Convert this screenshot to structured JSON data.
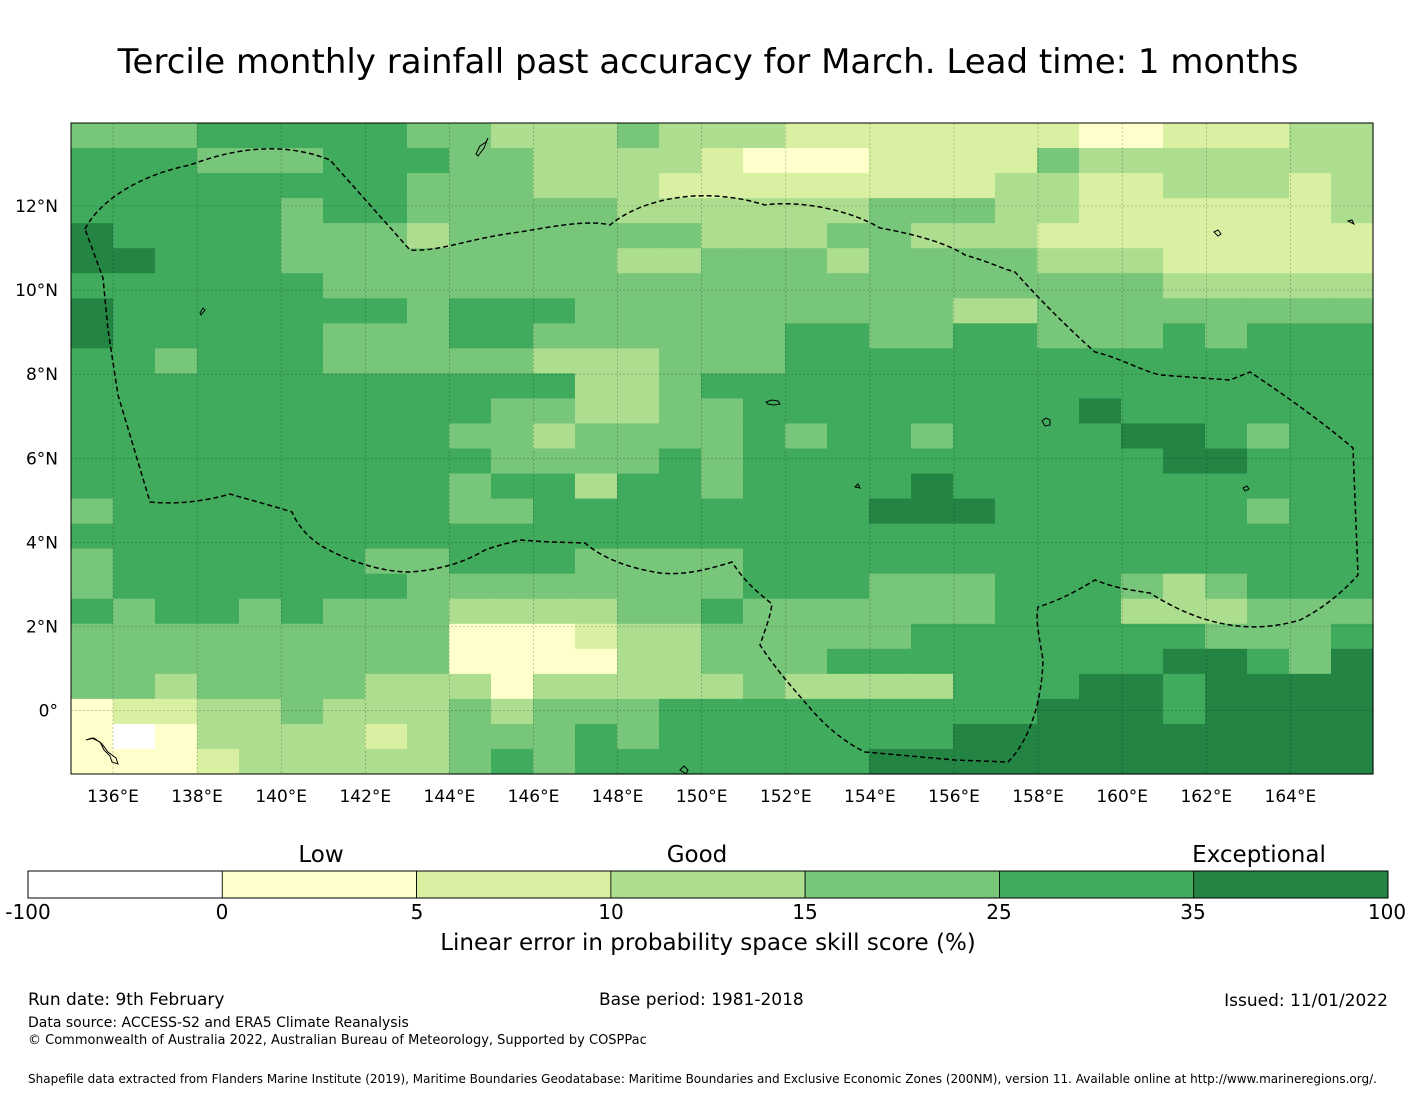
{
  "title": "Tercile monthly rainfall past accuracy for March. Lead time: 1 months",
  "map": {
    "lon_labels": [
      "136°E",
      "138°E",
      "140°E",
      "142°E",
      "144°E",
      "146°E",
      "148°E",
      "150°E",
      "152°E",
      "154°E",
      "156°E",
      "158°E",
      "160°E",
      "162°E",
      "164°E"
    ],
    "lat_labels": [
      "12°N",
      "10°N",
      "8°N",
      "6°N",
      "4°N",
      "2°N",
      "0°"
    ],
    "grid_rows": [
      "4445555544333433322222221122233",
      "5554445554433332111222243333333",
      "5555555544433322222222332233323",
      "5555545544444333333444332222223",
      "6555544434444443334433322222222",
      "6655544444444334443444433322222",
      "5555554444444444444444444433333",
      "6555555545554444444443344444444",
      "6555554445544444455445544454555",
      "5545554444433344455555555555555",
      "5555555555553345555555555555555",
      "5555555555443344555555556555555",
      "5555555554434444545545555665455",
      "5555555555444454555555555566555",
      "5555555554553554555565555555555",
      "4555555554455555555666555555455",
      "5555555555555555555555555555555",
      "4555555445554444555555555555555",
      "4555555544444444555444555434555",
      "5455454443333445444444555333444",
      "4444444441112334444455555554445",
      "4444444441111334445555555566546",
      "4434444333133333433335556656666",
      "1223343334344455555555566656666",
      "1013333234445455555556666666666",
      "1112333334545555555666666666666"
    ],
    "eez_region": "Federated States of Micronesia EEZ",
    "border_style": "dashed"
  },
  "legend": {
    "labels": [
      "Low",
      "Good",
      "Exceptional"
    ],
    "bins": [
      {
        "from": "-100",
        "to": "0",
        "color": "#ffffff"
      },
      {
        "from": "0",
        "to": "5",
        "color": "#ffffcc"
      },
      {
        "from": "5",
        "to": "10",
        "color": "#d9f0a3"
      },
      {
        "from": "10",
        "to": "15",
        "color": "#addd8e"
      },
      {
        "from": "15",
        "to": "25",
        "color": "#78c679"
      },
      {
        "from": "25",
        "to": "35",
        "color": "#41ab5d"
      },
      {
        "from": "35",
        "to": "100",
        "color": "#238443"
      }
    ],
    "ticks": [
      "-100",
      "0",
      "5",
      "10",
      "15",
      "25",
      "35",
      "100"
    ],
    "title": "Linear error in probability space skill score (%)"
  },
  "footer": {
    "run_date": "Run date: 9th February",
    "base_period": "Base period: 1981-2018",
    "issued": "Issued: 11/01/2022",
    "data_source": "Data source: ACCESS-S2 and ERA5 Climate Reanalysis",
    "copyright": "© Commonwealth of Australia 2022, Australian Bureau of Meteorology, Supported by COSPPac",
    "shapefile": "Shapefile data extracted from Flanders Marine Institute (2019), Maritime Boundaries Geodatabase: Maritime Boundaries and Exclusive Economic Zones (200NM), version 11. Available online at http://www.marineregions.org/."
  }
}
